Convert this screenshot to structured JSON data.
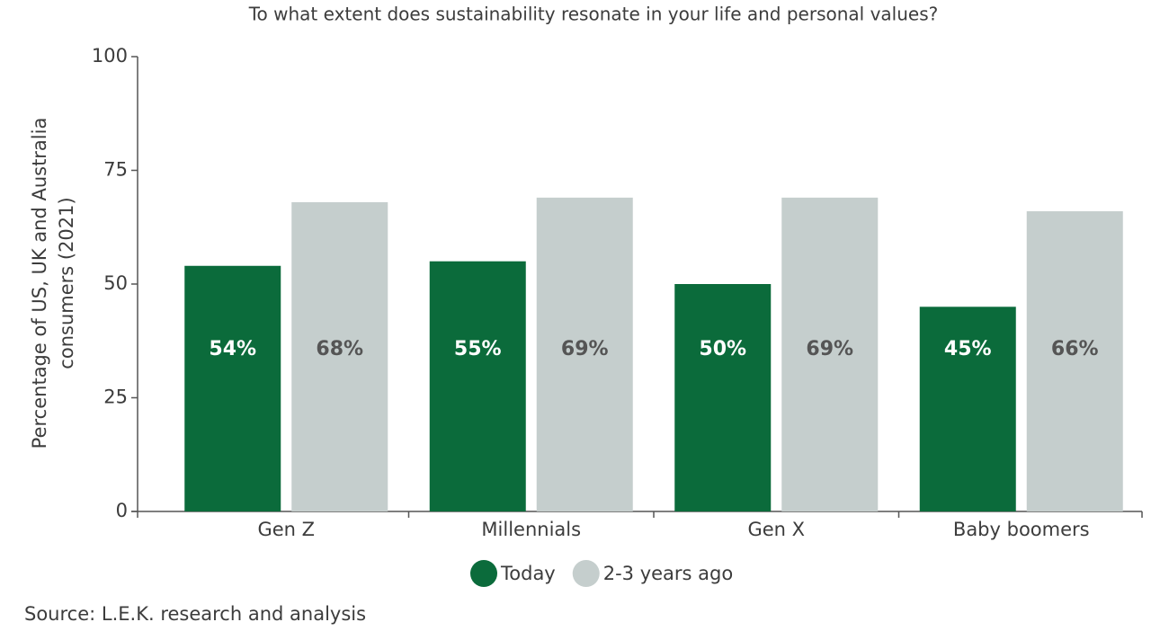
{
  "chart_data": {
    "type": "bar",
    "title": "To what extent does sustainability resonate in your life and personal values?",
    "ylabel": [
      "Percentage of US, UK and Australia",
      "consumers (2021)"
    ],
    "categories": [
      "Gen Z",
      "Millennials",
      "Gen X",
      "Baby boomers"
    ],
    "series": [
      {
        "name": "Today",
        "color": "#0b6b3b",
        "values": [
          54,
          55,
          50,
          45
        ],
        "value_labels": [
          "54%",
          "55%",
          "50%",
          "45%"
        ]
      },
      {
        "name": "2-3 years ago",
        "color": "#c5cecd",
        "values": [
          68,
          69,
          69,
          66
        ],
        "value_labels": [
          "68%",
          "69%",
          "69%",
          "66%"
        ]
      }
    ],
    "ylim": [
      0,
      100
    ],
    "yticks": [
      0,
      25,
      50,
      75,
      100
    ],
    "grid": false,
    "legend": "bottom",
    "source": "Source: L.E.K. research and analysis"
  }
}
